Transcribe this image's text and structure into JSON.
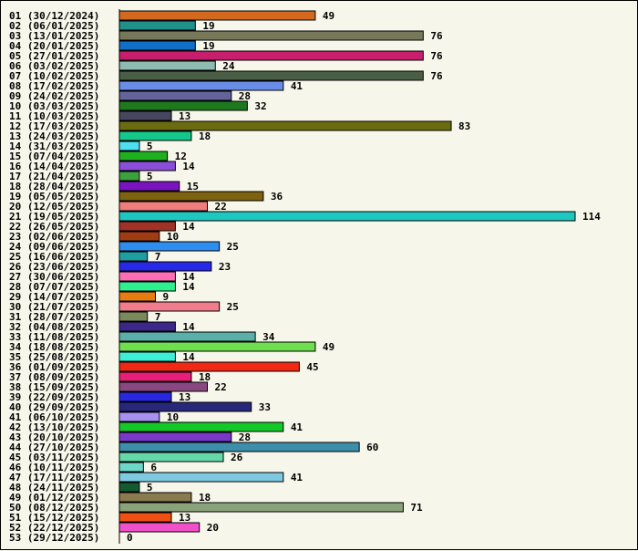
{
  "chart_data": {
    "type": "bar",
    "orientation": "horizontal",
    "title": "",
    "xlabel": "",
    "ylabel": "",
    "xlim": [
      0,
      114
    ],
    "grid": false,
    "legend": "none",
    "categories": [
      "01 (30/12/2024)",
      "02 (06/01/2025)",
      "03 (13/01/2025)",
      "04 (20/01/2025)",
      "05 (27/01/2025)",
      "06 (03/02/2025)",
      "07 (10/02/2025)",
      "08 (17/02/2025)",
      "09 (24/02/2025)",
      "10 (03/03/2025)",
      "11 (10/03/2025)",
      "12 (17/03/2025)",
      "13 (24/03/2025)",
      "14 (31/03/2025)",
      "15 (07/04/2025)",
      "16 (14/04/2025)",
      "17 (21/04/2025)",
      "18 (28/04/2025)",
      "19 (05/05/2025)",
      "20 (12/05/2025)",
      "21 (19/05/2025)",
      "22 (26/05/2025)",
      "23 (02/06/2025)",
      "24 (09/06/2025)",
      "25 (16/06/2025)",
      "26 (23/06/2025)",
      "27 (30/06/2025)",
      "28 (07/07/2025)",
      "29 (14/07/2025)",
      "30 (21/07/2025)",
      "31 (28/07/2025)",
      "32 (04/08/2025)",
      "33 (11/08/2025)",
      "34 (18/08/2025)",
      "35 (25/08/2025)",
      "36 (01/09/2025)",
      "37 (08/09/2025)",
      "38 (15/09/2025)",
      "39 (22/09/2025)",
      "40 (29/09/2025)",
      "41 (06/10/2025)",
      "42 (13/10/2025)",
      "43 (20/10/2025)",
      "44 (27/10/2025)",
      "45 (03/11/2025)",
      "46 (10/11/2025)",
      "47 (17/11/2025)",
      "48 (24/11/2025)",
      "49 (01/12/2025)",
      "50 (08/12/2025)",
      "51 (15/12/2025)",
      "52 (22/12/2025)",
      "53 (29/12/2025)"
    ],
    "values": [
      49,
      19,
      76,
      19,
      76,
      24,
      76,
      41,
      28,
      32,
      13,
      83,
      18,
      5,
      12,
      14,
      5,
      15,
      36,
      22,
      114,
      14,
      10,
      25,
      7,
      23,
      14,
      14,
      9,
      25,
      7,
      14,
      34,
      49,
      14,
      45,
      18,
      22,
      13,
      33,
      10,
      41,
      28,
      60,
      26,
      6,
      41,
      5,
      18,
      71,
      13,
      20,
      0
    ],
    "colors": [
      "#d2691e",
      "#20908a",
      "#77775a",
      "#1070c8",
      "#c81e6e",
      "#8fbcb0",
      "#4a5e46",
      "#6a8ee8",
      "#64649a",
      "#1e781e",
      "#46465e",
      "#6b6b10",
      "#14c88c",
      "#4ee0f0",
      "#1eb01e",
      "#8a4ed8",
      "#3ca03c",
      "#7a14c0",
      "#7d6210",
      "#f07c7c",
      "#1ec8c0",
      "#a03228",
      "#a03c14",
      "#2e8ef0",
      "#1e9ea0",
      "#2828e8",
      "#ff6eb4",
      "#2ef08e",
      "#e87c10",
      "#f07c8c",
      "#7a8a5a",
      "#3c2888",
      "#5ab0a8",
      "#6ee050",
      "#3cf0d8",
      "#f02814",
      "#e81e78",
      "#8a4880",
      "#2828e0",
      "#28287a",
      "#a890f0",
      "#14c828",
      "#7838c8",
      "#3c8eaa",
      "#64d8a8",
      "#6ed8c8",
      "#7ec8e0",
      "#145a32",
      "#8a7a50",
      "#8aa27a",
      "#f05014",
      "#f050c8",
      "#888888"
    ]
  }
}
